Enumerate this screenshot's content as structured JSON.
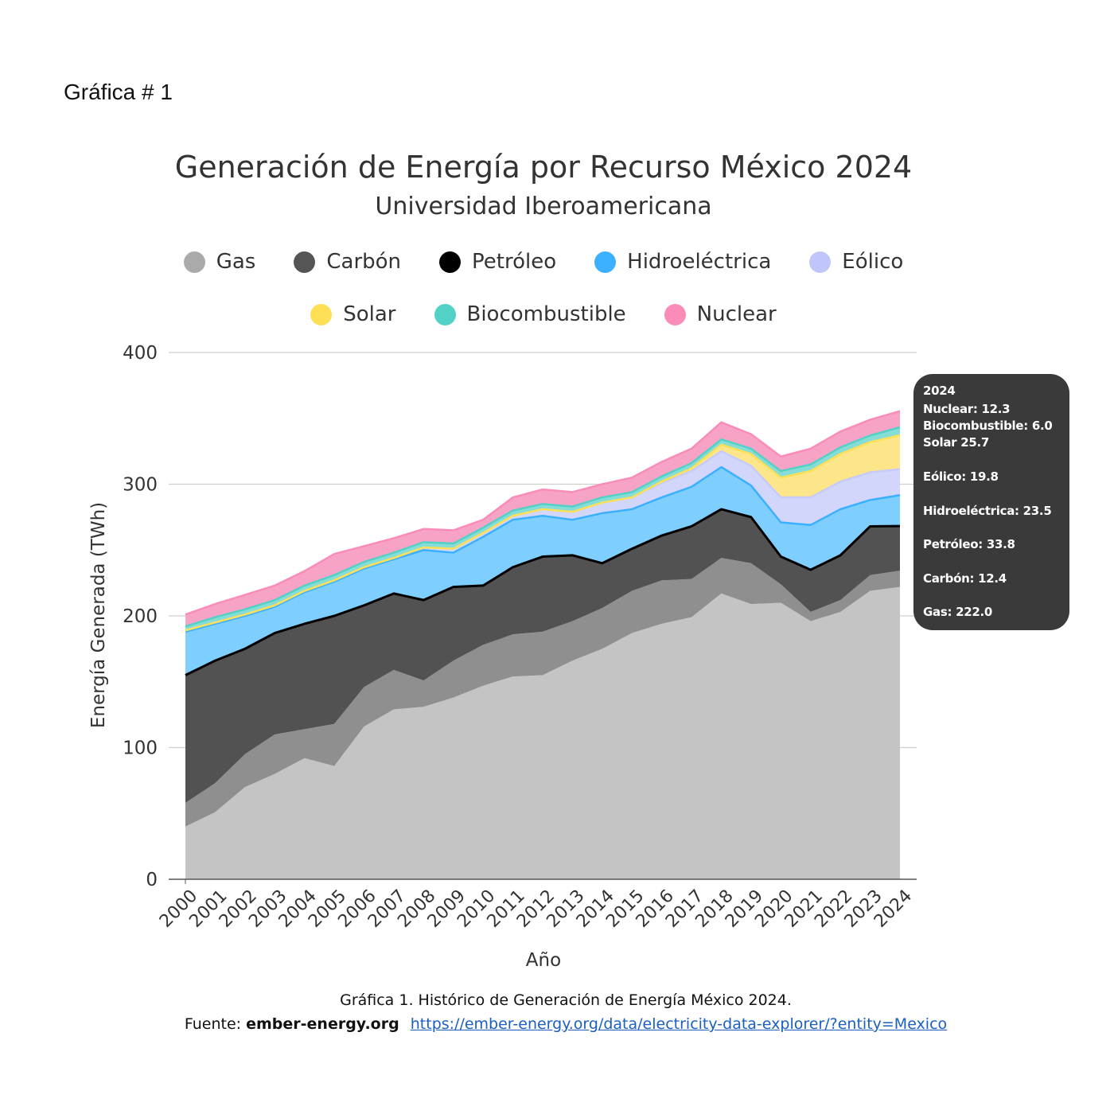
{
  "figure_label": "Gráfica # 1",
  "caption": {
    "line1": "Gráfica 1.  Histórico de Generación de Energía México 2024.",
    "line2_prefix": "Fuente:",
    "source_name": "ember-energy.org",
    "url": "https://ember-energy.org/data/electricity-data-explorer/?entity=Mexico"
  },
  "tooltip": {
    "year": "2024",
    "nuclear": "Nuclear: 12.3",
    "biocombustible": "Biocombustible: 6.0",
    "solar": "Solar 25.7",
    "eolico": "Eólico: 19.8",
    "hidro": "Hidroeléctrica: 23.5",
    "petroleo": "Petróleo: 33.8",
    "carbon": "Carbón: 12.4",
    "gas": "Gas: 222.0"
  },
  "chart_data": {
    "type": "area",
    "stacked": true,
    "title": "Generación de Energía por Recurso México 2024",
    "subtitle": "Universidad Iberoamericana",
    "xlabel": "Año",
    "ylabel": "Energía Generada (TWh)",
    "ylim": [
      0,
      400
    ],
    "yticks": [
      "0",
      "100",
      "200",
      "300",
      "400"
    ],
    "grid": true,
    "legend_position": "top",
    "x": [
      "2000",
      "2001",
      "2002",
      "2003",
      "2004",
      "2005",
      "2006",
      "2007",
      "2008",
      "2009",
      "2010",
      "2011",
      "2012",
      "2013",
      "2014",
      "2015",
      "2016",
      "2017",
      "2018",
      "2019",
      "2020",
      "2021",
      "2022",
      "2023",
      "2024"
    ],
    "series": [
      {
        "name": "Gas",
        "color": "#c4c4c4",
        "values": [
          40,
          51,
          70,
          80,
          92,
          86,
          116,
          129,
          131,
          138,
          147,
          154,
          155,
          166,
          175,
          187,
          194,
          199,
          217,
          209,
          210,
          196,
          203,
          219,
          222
        ]
      },
      {
        "name": "Carbón",
        "color": "#8f8f8f",
        "values": [
          18,
          22,
          25,
          30,
          22,
          32,
          30,
          30,
          20,
          28,
          31,
          32,
          33,
          30,
          31,
          32,
          33,
          29,
          27,
          31,
          14,
          7,
          9,
          12,
          12.4
        ]
      },
      {
        "name": "Petróleo",
        "color": "#525252",
        "values": [
          97,
          93,
          80,
          77,
          80,
          82,
          62,
          58,
          61,
          56,
          45,
          51,
          57,
          50,
          34,
          32,
          34,
          40,
          37,
          35,
          21,
          32,
          34,
          37,
          33.8
        ]
      },
      {
        "name": "Hidroeléctrica",
        "color": "#7ecfff",
        "values": [
          33,
          28,
          25,
          20,
          24,
          26,
          28,
          26,
          38,
          26,
          37,
          36,
          31,
          27,
          38,
          30,
          29,
          30,
          32,
          24,
          26,
          34,
          35,
          20,
          23.5
        ]
      },
      {
        "name": "Eólico",
        "color": "#d3d6fb",
        "values": [
          1,
          1,
          1,
          1,
          1,
          1,
          1,
          1,
          2,
          3,
          3,
          3,
          5,
          6,
          8,
          9,
          11,
          12,
          12,
          15,
          19,
          21,
          21,
          21,
          19.8
        ]
      },
      {
        "name": "Solar",
        "color": "#fde68a",
        "values": [
          0,
          0,
          0,
          0,
          0,
          0,
          0,
          0,
          0,
          0,
          0,
          0,
          0,
          0,
          0,
          0,
          1,
          2,
          5,
          9,
          15,
          20,
          21,
          23,
          25.7
        ]
      },
      {
        "name": "Biocombustible",
        "color": "#86ddd6",
        "values": [
          3,
          4,
          4,
          4,
          4,
          4,
          4,
          4,
          4,
          4,
          4,
          4,
          4,
          4,
          4,
          4,
          4,
          4,
          4,
          4,
          5,
          5,
          5,
          5,
          6.0
        ]
      },
      {
        "name": "Nuclear",
        "color": "#f7a3c6",
        "values": [
          9,
          10,
          11,
          11,
          11,
          16,
          12,
          11,
          10,
          10,
          6,
          10,
          11,
          11,
          10,
          11,
          11,
          11,
          13,
          11,
          11,
          12,
          12,
          12,
          12.3
        ]
      }
    ],
    "legend": [
      {
        "name": "Gas",
        "color": "#aaaaaa"
      },
      {
        "name": "Carbón",
        "color": "#555555"
      },
      {
        "name": "Petróleo",
        "color": "#000000"
      },
      {
        "name": "Hidroeléctrica",
        "color": "#3ab0ff"
      },
      {
        "name": "Eólico",
        "color": "#c0c6fa"
      },
      {
        "name": "Solar",
        "color": "#fde055"
      },
      {
        "name": "Biocombustible",
        "color": "#52d1c6"
      },
      {
        "name": "Nuclear",
        "color": "#f98cb9"
      }
    ]
  }
}
